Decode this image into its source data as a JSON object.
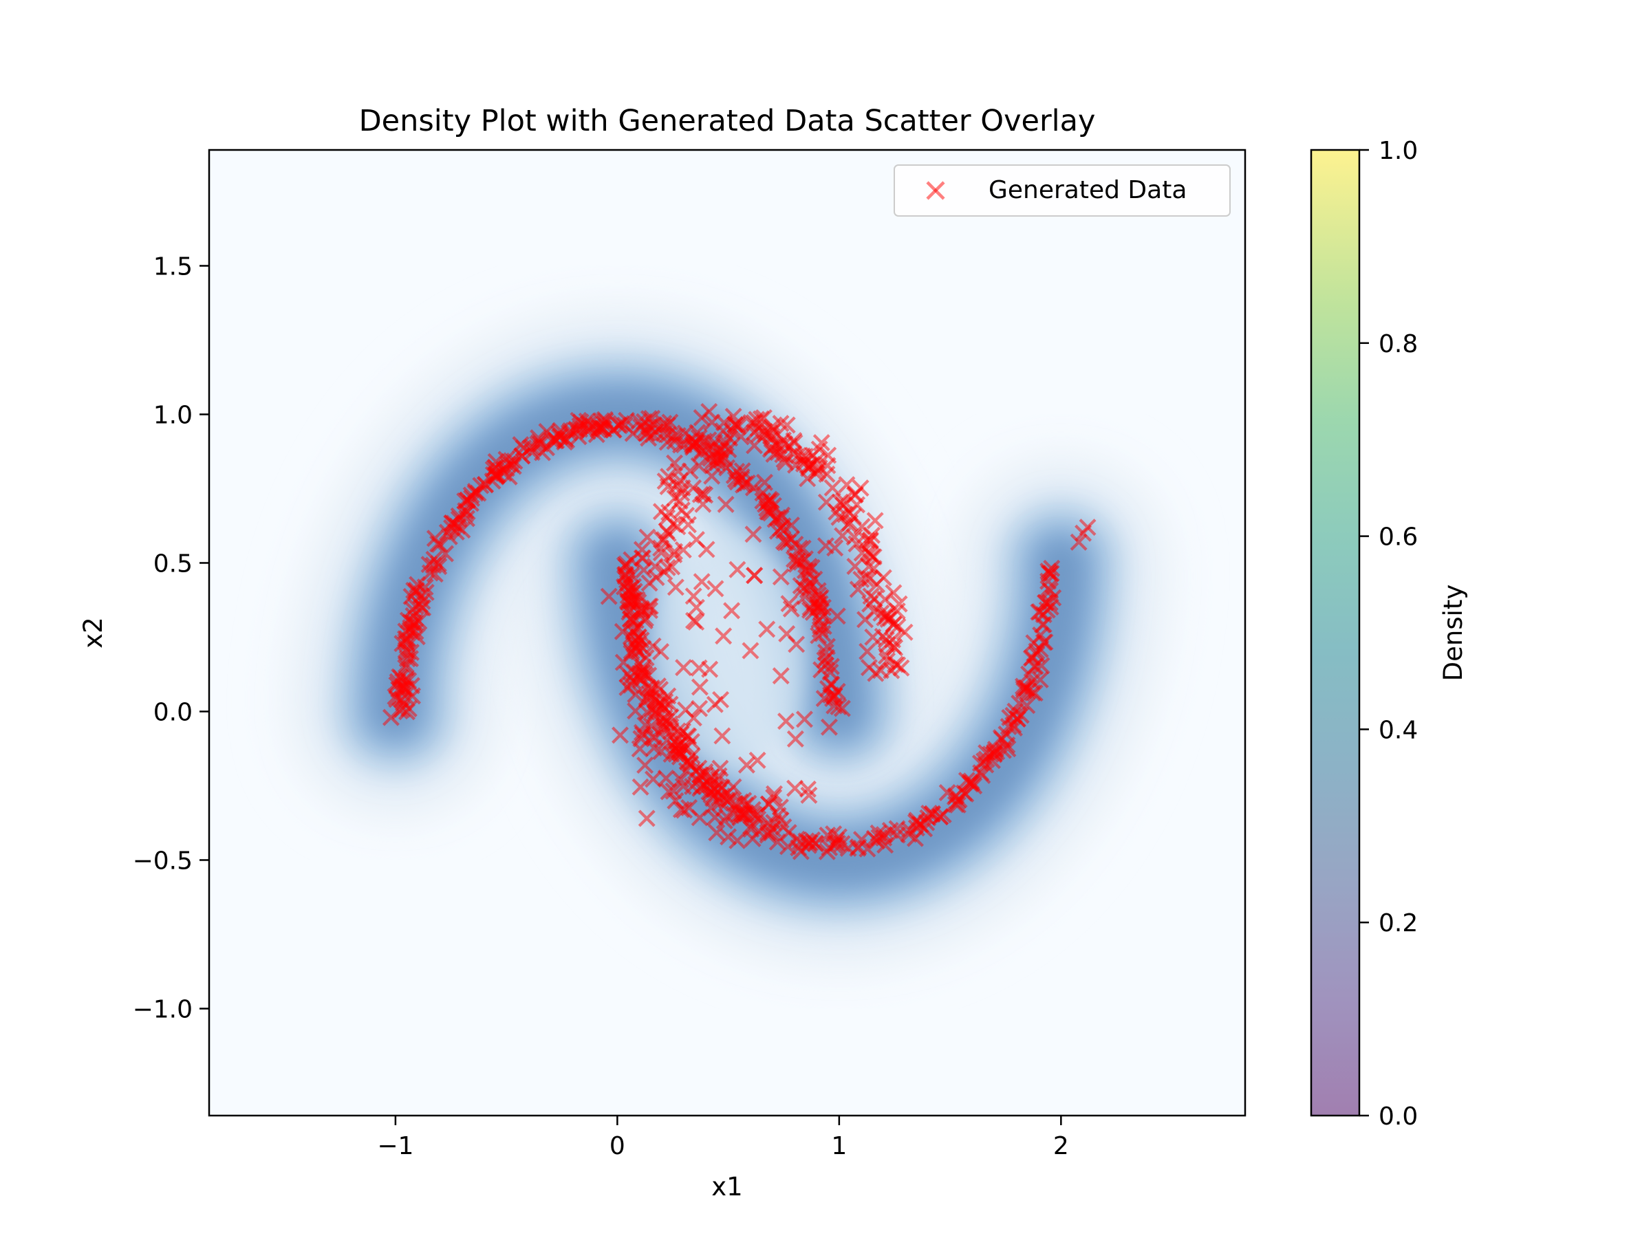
{
  "chart_data": {
    "type": "scatter",
    "title": "Density Plot with Generated Data Scatter Overlay",
    "xlabel": "x1",
    "ylabel": "x2",
    "xlim": [
      -1.84,
      2.83
    ],
    "ylim": [
      -1.36,
      1.89
    ],
    "xticks": [
      -1,
      0,
      1,
      2
    ],
    "xtick_labels": [
      "−1",
      "0",
      "1",
      "2"
    ],
    "yticks": [
      -1.0,
      -0.5,
      0.0,
      0.5,
      1.0,
      1.5
    ],
    "ytick_labels": [
      "−1.0",
      "−0.5",
      "0.0",
      "0.5",
      "1.0",
      "1.5"
    ],
    "grid": false,
    "legend": {
      "position": "top-right",
      "entries": [
        "Generated Data"
      ]
    },
    "background_density": {
      "type": "filled-contour",
      "colormap": "Blues",
      "description_shape": "two interleaving half-moons",
      "upper_moon": {
        "center": [
          0.0,
          0.0
        ],
        "radius": 1.0,
        "arc": "upper"
      },
      "lower_moon": {
        "center": [
          1.0,
          0.5
        ],
        "radius": 1.0,
        "arc": "lower"
      }
    },
    "series": [
      {
        "name": "Generated Data",
        "marker": "x",
        "color": "#ff0000",
        "alpha": 0.5,
        "groups": [
          {
            "shape": "upper-arc",
            "center": [
              0.0,
              0.0
            ],
            "radius": 0.97,
            "angle_start_deg": 0,
            "angle_end_deg": 180,
            "count": 320,
            "spread": 0.015
          },
          {
            "shape": "arc-extra-tip",
            "points": [
              [
                -1.02,
                -0.02
              ],
              [
                -1.0,
                0.05
              ],
              [
                -0.99,
                0.1
              ],
              [
                2.1,
                0.6
              ],
              [
                2.12,
                0.62
              ],
              [
                2.08,
                0.57
              ]
            ]
          },
          {
            "shape": "inner-left-arc",
            "center": [
              0.72,
              0.25
            ],
            "radius": 0.62,
            "angle_start_deg": 120,
            "angle_end_deg": 275,
            "count": 160,
            "spread": 0.05
          },
          {
            "shape": "inner-right-arc",
            "center": [
              0.45,
              0.18
            ],
            "radius": 0.78,
            "angle_start_deg": -5,
            "angle_end_deg": 95,
            "count": 150,
            "spread": 0.04
          },
          {
            "shape": "lower-arc",
            "center": [
              1.0,
              0.5
            ],
            "radius": 0.95,
            "angle_start_deg": 180,
            "angle_end_deg": 360,
            "count": 260,
            "spread": 0.015
          },
          {
            "shape": "interior-scatter",
            "x_range": [
              0.1,
              1.0
            ],
            "y_range": [
              -0.4,
              0.6
            ],
            "count": 70
          }
        ]
      }
    ],
    "colorbar": {
      "label": "Density",
      "colormap": "viridis",
      "alpha": 0.5,
      "range": [
        0.0,
        1.0
      ],
      "ticks": [
        0.0,
        0.2,
        0.4,
        0.6,
        0.8,
        1.0
      ],
      "tick_labels": [
        "0.0",
        "0.2",
        "0.4",
        "0.6",
        "0.8",
        "1.0"
      ]
    }
  }
}
